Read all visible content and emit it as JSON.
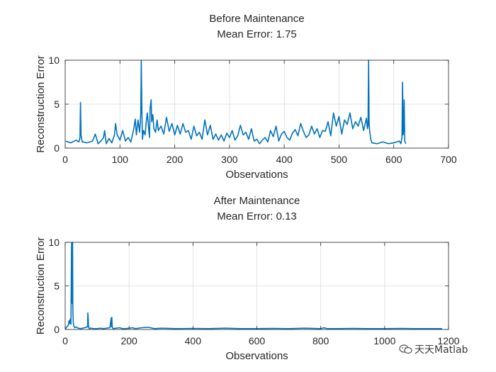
{
  "chart_data": [
    {
      "type": "line",
      "title": "Before Maintenance",
      "subtitle": "Mean Error: 1.75",
      "xlabel": "Observations",
      "ylabel": "Reconstruction Error",
      "xlim": [
        0,
        700
      ],
      "ylim": [
        0,
        10
      ],
      "xticks": [
        0,
        100,
        200,
        300,
        400,
        500,
        600,
        700
      ],
      "yticks": [
        0,
        5,
        10
      ],
      "grid": true,
      "color": "#0072BD",
      "series": [
        {
          "x": [
            1,
            10,
            20,
            25,
            27,
            28,
            29,
            31,
            33,
            40,
            50,
            55,
            60,
            65,
            70,
            72,
            75,
            80,
            85,
            90,
            92,
            95,
            100,
            105,
            110,
            115,
            120,
            125,
            128,
            130,
            133,
            136,
            138,
            139,
            140,
            141,
            143,
            146,
            148,
            150,
            152,
            154,
            155,
            157,
            158,
            160,
            162,
            165,
            168,
            170,
            175,
            180,
            185,
            190,
            195,
            200,
            205,
            210,
            215,
            220,
            225,
            230,
            235,
            240,
            245,
            250,
            255,
            260,
            265,
            270,
            275,
            280,
            285,
            290,
            295,
            300,
            305,
            310,
            315,
            320,
            325,
            330,
            335,
            340,
            345,
            350,
            355,
            360,
            365,
            370,
            375,
            380,
            385,
            390,
            395,
            400,
            405,
            410,
            415,
            420,
            425,
            430,
            435,
            440,
            445,
            450,
            455,
            460,
            465,
            470,
            475,
            480,
            485,
            490,
            495,
            500,
            505,
            510,
            515,
            520,
            525,
            530,
            535,
            540,
            545,
            550,
            552,
            553,
            554,
            555,
            556,
            558,
            560,
            570,
            580,
            590,
            600,
            610,
            613,
            615,
            616,
            617,
            618,
            619,
            620,
            622
          ],
          "y": [
            0.8,
            0.6,
            0.9,
            0.7,
            1.2,
            5.2,
            1.5,
            0.7,
            0.7,
            0.6,
            0.8,
            1.6,
            0.5,
            0.8,
            1.2,
            2.0,
            0.5,
            1.1,
            0.6,
            1.5,
            2.8,
            1.5,
            0.9,
            2.0,
            0.8,
            1.2,
            0.7,
            2.1,
            3.3,
            1.5,
            3.2,
            1.8,
            4.0,
            10.0,
            4.5,
            1.0,
            2.0,
            1.5,
            3.0,
            4.0,
            2.5,
            1.2,
            4.5,
            5.5,
            3.0,
            3.8,
            2.2,
            1.8,
            3.2,
            2.0,
            2.5,
            1.6,
            3.5,
            1.9,
            2.8,
            1.5,
            2.6,
            1.6,
            2.8,
            1.8,
            2.0,
            1.0,
            2.5,
            1.4,
            1.8,
            1.0,
            3.2,
            1.5,
            2.6,
            1.0,
            1.6,
            0.9,
            1.5,
            0.8,
            1.7,
            1.2,
            2.0,
            0.9,
            1.4,
            2.6,
            1.5,
            1.8,
            1.0,
            2.2,
            0.8,
            1.0,
            0.5,
            0.9,
            1.2,
            0.7,
            2.0,
            1.3,
            2.5,
            0.8,
            1.6,
            1.9,
            1.2,
            0.9,
            1.7,
            2.1,
            1.4,
            2.8,
            1.9,
            1.2,
            1.5,
            2.5,
            1.6,
            2.2,
            1.2,
            2.0,
            1.9,
            3.0,
            1.4,
            4.0,
            2.5,
            3.6,
            1.6,
            3.2,
            2.7,
            4.0,
            2.2,
            3.0,
            2.5,
            3.5,
            2.0,
            3.4,
            2.2,
            2.5,
            10.0,
            3.0,
            2.0,
            1.0,
            0.6,
            0.5,
            0.7,
            0.5,
            0.6,
            0.8,
            0.5,
            1.2,
            7.5,
            1.5,
            2.0,
            5.5,
            0.8,
            0.5
          ]
        }
      ]
    },
    {
      "type": "line",
      "title": "After Maintenance",
      "subtitle": "Mean Error: 0.13",
      "xlabel": "Observations",
      "ylabel": "Reconstruction Error",
      "xlim": [
        0,
        1200
      ],
      "ylim": [
        0,
        10
      ],
      "xticks": [
        0,
        200,
        400,
        600,
        800,
        1000,
        1200
      ],
      "yticks": [
        0,
        5,
        10
      ],
      "grid": true,
      "color": "#0072BD",
      "series": [
        {
          "x": [
            1,
            5,
            10,
            12,
            14,
            16,
            18,
            20,
            21,
            22,
            23,
            24,
            25,
            26,
            28,
            30,
            35,
            40,
            50,
            60,
            70,
            71,
            72,
            73,
            74,
            75,
            80,
            90,
            100,
            110,
            120,
            130,
            140,
            144,
            145,
            146,
            147,
            148,
            150,
            160,
            170,
            180,
            190,
            200,
            210,
            220,
            240,
            260,
            280,
            300,
            350,
            400,
            450,
            500,
            550,
            600,
            650,
            700,
            750,
            800,
            810,
            820,
            850,
            900,
            950,
            1000,
            1050,
            1100,
            1150,
            1180
          ],
          "y": [
            0.1,
            0.3,
            0.5,
            1.0,
            0.7,
            1.2,
            0.6,
            9.8,
            10.0,
            3.0,
            10.0,
            2.5,
            1.0,
            0.6,
            0.3,
            0.2,
            0.3,
            0.15,
            0.1,
            0.2,
            0.3,
            1.9,
            1.2,
            0.4,
            0.2,
            0.1,
            0.15,
            0.1,
            0.1,
            0.15,
            0.1,
            0.15,
            0.2,
            1.3,
            0.3,
            1.4,
            0.4,
            0.2,
            0.1,
            0.15,
            0.2,
            0.1,
            0.1,
            0.15,
            0.2,
            0.1,
            0.2,
            0.25,
            0.1,
            0.15,
            0.1,
            0.12,
            0.1,
            0.15,
            0.1,
            0.1,
            0.12,
            0.1,
            0.15,
            0.1,
            0.2,
            0.1,
            0.1,
            0.12,
            0.1,
            0.1,
            0.12,
            0.1,
            0.1,
            0.1
          ]
        }
      ]
    }
  ],
  "watermark": {
    "text": "天天Matlab",
    "icon": "wechat-icon"
  }
}
